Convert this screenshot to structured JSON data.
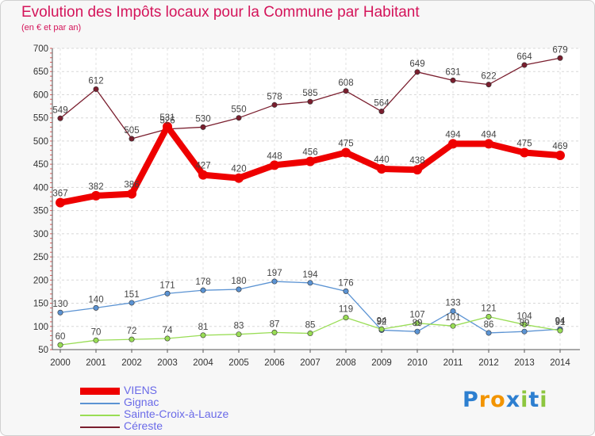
{
  "chart_data": {
    "type": "line",
    "title": "Evolution des Impôts locaux pour la Commune par Habitant",
    "subtitle": "(en € et par an)",
    "xlabel": "",
    "ylabel": "",
    "ylim": [
      50,
      700
    ],
    "yticks": [
      50,
      100,
      150,
      200,
      250,
      300,
      350,
      400,
      450,
      500,
      550,
      600,
      650,
      700
    ],
    "grid": true,
    "legend_position": "bottom-left",
    "categories": [
      "2000",
      "2001",
      "2002",
      "2003",
      "2004",
      "2005",
      "2006",
      "2007",
      "2008",
      "2009",
      "2010",
      "2011",
      "2012",
      "2013",
      "2014"
    ],
    "series": [
      {
        "name": "Céreste",
        "color": "#7a1e2e",
        "values": [
          549,
          612,
          505,
          526,
          530,
          550,
          578,
          585,
          608,
          564,
          649,
          631,
          622,
          664,
          679
        ],
        "labels": [
          "549",
          "612",
          "505",
          "526",
          "530",
          "550",
          "578",
          "585",
          "608",
          "564",
          "649",
          "631",
          "622",
          "664",
          "679"
        ]
      },
      {
        "name": "VIENS",
        "color": "#ee0000",
        "values": [
          367,
          382,
          386,
          531,
          427,
          420,
          448,
          456,
          475,
          440,
          438,
          494,
          494,
          475,
          469
        ],
        "labels": [
          "367",
          "382",
          "386",
          "531",
          "427",
          "420",
          "448",
          "456",
          "475",
          "440",
          "438",
          "494",
          "494",
          "475",
          "469"
        ]
      },
      {
        "name": "Gignac",
        "color": "#5b93d3",
        "values": [
          130,
          140,
          151,
          171,
          178,
          180,
          197,
          194,
          176,
          92,
          89,
          133,
          86,
          89,
          94
        ],
        "labels": [
          "130",
          "140",
          "151",
          "171",
          "178",
          "180",
          "197",
          "194",
          "176",
          "92",
          "89",
          "133",
          "86",
          "89",
          "94"
        ]
      },
      {
        "name": "Sainte-Croix-à-Lauze",
        "color": "#99dd55",
        "values": [
          60,
          70,
          72,
          74,
          81,
          83,
          87,
          85,
          119,
          94,
          107,
          101,
          121,
          104,
          91
        ],
        "labels": [
          "60",
          "70",
          "72",
          "74",
          "81",
          "83",
          "87",
          "85",
          "119",
          "94",
          "107",
          "101",
          "121",
          "104",
          "91"
        ]
      }
    ]
  },
  "legend": [
    {
      "label": "VIENS",
      "color": "#ee0000"
    },
    {
      "label": "Gignac",
      "color": "#5b93d3"
    },
    {
      "label": "Sainte-Croix-à-Lauze",
      "color": "#99dd55"
    },
    {
      "label": "Céreste",
      "color": "#7a1e2e"
    }
  ],
  "logo": {
    "text": "Proxiti",
    "letters": [
      "P",
      "r",
      "o",
      "x",
      "i",
      "t",
      "i"
    ],
    "colors": [
      "#2d7fd0",
      "#f29400",
      "#f29400",
      "#2d7fd0",
      "#8dc63f",
      "#2d7fd0",
      "#8dc63f"
    ]
  }
}
